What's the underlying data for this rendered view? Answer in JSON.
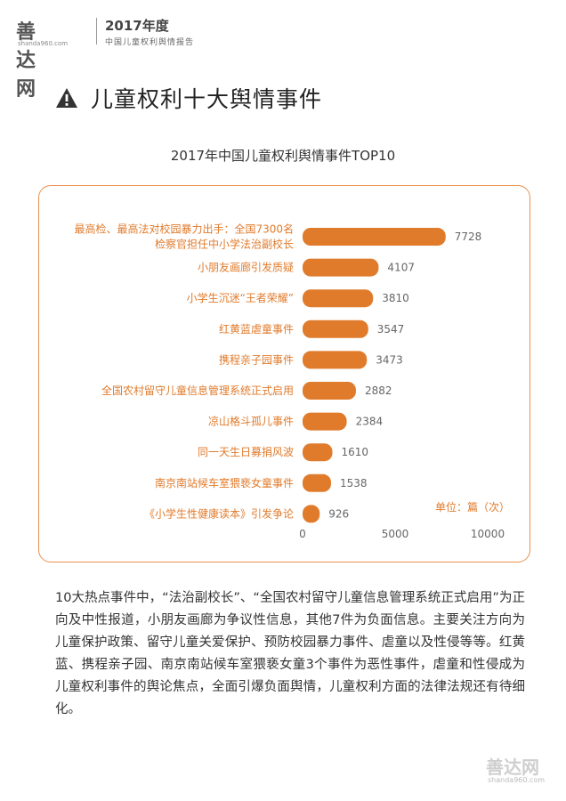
{
  "header": {
    "logo_text": "善达网",
    "logo_url": "shanda960.com",
    "report_year": "2017年度",
    "report_subtitle": "中国儿童权利舆情报告"
  },
  "section": {
    "title": "儿童权利十大舆情事件",
    "icon": "warning-icon"
  },
  "chart_data": {
    "type": "bar",
    "orientation": "horizontal",
    "title": "2017年中国儿童权利舆情事件TOP10",
    "unit": "单位：篇（次）",
    "categories": [
      [
        "最高检、最高法对校园暴力出手：全国7300名",
        "检察官担任中小学法治副校长"
      ],
      [
        "小朋友画廊引发质疑"
      ],
      [
        "小学生沉迷“王者荣耀”"
      ],
      [
        "红黄蓝虐童事件"
      ],
      [
        "携程亲子园事件"
      ],
      [
        "全国农村留守儿童信息管理系统正式启用"
      ],
      [
        "凉山格斗孤儿事件"
      ],
      [
        "同一天生日募捐风波"
      ],
      [
        "南京南站候车室猥亵女童事件"
      ],
      [
        "《小学生性健康读本》引发争论"
      ]
    ],
    "values": [
      7728,
      4107,
      3810,
      3547,
      3473,
      2882,
      2384,
      1610,
      1538,
      926
    ],
    "xlim": [
      0,
      10000
    ],
    "xticks": [
      0,
      5000,
      10000
    ],
    "bar_color": "#e07b2c",
    "grid": false
  },
  "summary": "10大热点事件中，“法治副校长”、“全国农村留守儿童信息管理系统正式启用”为正向及中性报道，小朋友画廊为争议性信息，其他7件为负面信息。主要关注方向为儿童保护政策、留守儿童关爱保护、预防校园暴力事件、虐童以及性侵等等。红黄蓝、携程亲子园、南京南站候车室猥亵女童3个事件为恶性事件，虐童和性侵成为儿童权利事件的舆论焦点，全面引爆负面舆情，儿童权利方面的法律法规还有待细化。",
  "footer": {
    "logo_text": "善达网",
    "logo_url": "shanda960.com"
  }
}
